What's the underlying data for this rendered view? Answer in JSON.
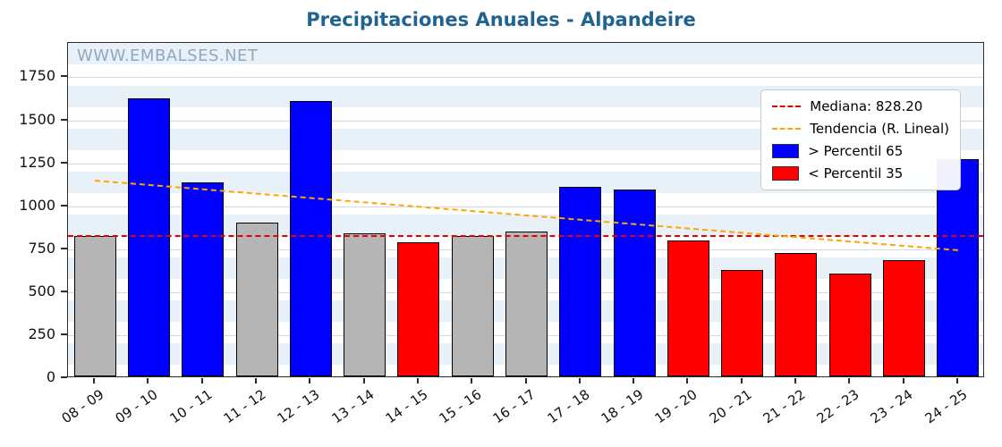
{
  "title": "Precipitaciones Anuales - Alpandeire",
  "watermark": "WWW.EMBALSES.NET",
  "legend": {
    "median_label": "Mediana: 828.20",
    "trend_label": "Tendencia (R. Lineal)",
    "p65_label": "> Percentil 65",
    "p35_label": "< Percentil 35"
  },
  "colors": {
    "title": "#1f6391",
    "watermark": "#8fa8bf",
    "bar_blue": "#0000ff",
    "bar_red": "#ff0000",
    "bar_gray": "#b5b5b5",
    "median_line": "#e60000",
    "trend_line": "#ffa500",
    "stripe": "#e9f1f8"
  },
  "chart_data": {
    "type": "bar",
    "title": "Precipitaciones Anuales - Alpandeire",
    "xlabel": "",
    "ylabel": "",
    "categories": [
      "08 - 09",
      "09 - 10",
      "10 - 11",
      "11 - 12",
      "12 - 13",
      "13 - 14",
      "14 - 15",
      "15 - 16",
      "16 - 17",
      "17 - 18",
      "18 - 19",
      "19 - 20",
      "20 - 21",
      "21 - 22",
      "22 - 23",
      "23 - 24",
      "24 - 25"
    ],
    "values": [
      815,
      1615,
      1130,
      895,
      1600,
      830,
      780,
      815,
      840,
      1100,
      1085,
      790,
      620,
      720,
      600,
      675,
      1265
    ],
    "bar_colors": [
      "gray",
      "blue",
      "blue",
      "gray",
      "blue",
      "gray",
      "red",
      "gray",
      "gray",
      "blue",
      "blue",
      "red",
      "red",
      "red",
      "red",
      "red",
      "blue"
    ],
    "median": 828.2,
    "trend": {
      "start": 1155,
      "end": 750
    },
    "ylim": [
      0,
      1950
    ],
    "yticks": [
      0,
      250,
      500,
      750,
      1000,
      1250,
      1500,
      1750
    ],
    "grid": true,
    "legend_position": "upper right"
  }
}
